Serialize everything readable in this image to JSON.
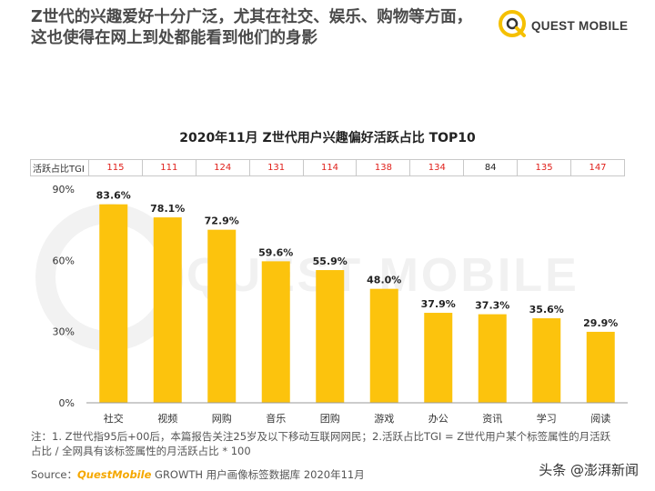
{
  "header": {
    "headline_line1": "Z世代的兴趣爱好十分广泛，尤其在社交、娱乐、购物等方面，",
    "headline_line2": "这也使得在网上到处都能看到他们的身影",
    "logo_text": "QUEST MOBILE"
  },
  "watermark_text": "QUEST MOBILE",
  "tgi_row": {
    "label": "活跃占比TGI",
    "values": [
      115,
      111,
      124,
      131,
      114,
      138,
      134,
      84,
      135,
      147
    ]
  },
  "chart_data": {
    "type": "bar",
    "title": "2020年11月 Z世代用户兴趣偏好活跃占比 TOP10",
    "categories": [
      "社交",
      "视频",
      "网购",
      "音乐",
      "团购",
      "游戏",
      "办公",
      "资讯",
      "学习",
      "阅读"
    ],
    "values": [
      83.6,
      78.1,
      72.9,
      59.6,
      55.9,
      48.0,
      37.9,
      37.3,
      35.6,
      29.9
    ],
    "value_labels": [
      "83.6%",
      "78.1%",
      "72.9%",
      "59.6%",
      "55.9%",
      "48.0%",
      "37.9%",
      "37.3%",
      "35.6%",
      "29.9%"
    ],
    "ylim": [
      0,
      90
    ],
    "yticks": [
      0,
      30,
      60,
      90
    ],
    "ytick_labels": [
      "0%",
      "30%",
      "60%",
      "90%"
    ],
    "bar_color": "#fcc30d",
    "grid": false
  },
  "footer": {
    "note_line1": "注：1. Z世代指95后+00后，本篇报告关注25岁及以下移动互联网网民；2.活跃占比TGI = Z世代用户某个标签属性的月活跃",
    "note_line2": "占比 / 全网具有该标签属性的月活跃占比 * 100",
    "source_prefix": "Source：",
    "source_brand": "QuestMobile",
    "source_rest": " GROWTH 用户画像标签数据库 2020年11月",
    "repost_watermark": "头条 @澎湃新闻"
  }
}
